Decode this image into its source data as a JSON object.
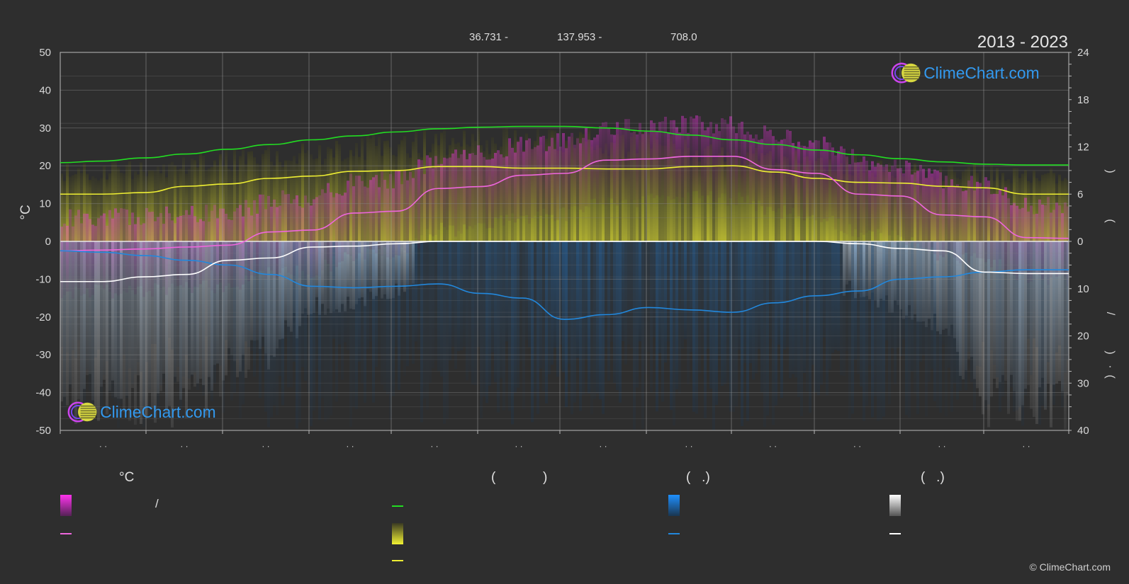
{
  "header": {
    "period": "2013 - 2023",
    "coord_lat": "36.731 -",
    "coord_lon": "137.953 -",
    "elevation": "708.0"
  },
  "brand": {
    "name": "ClimeChart.com",
    "copyright": "© ClimeChart.com"
  },
  "chart_data": {
    "type": "line",
    "left_axis": {
      "label": "°C",
      "min": -50,
      "max": 50,
      "ticks": [
        "50",
        "40",
        "30",
        "20",
        "10",
        "0",
        "-10",
        "-20",
        "-30",
        "-40",
        "-50"
      ]
    },
    "right_axis_top": {
      "min": 0,
      "max": 24,
      "ticks": [
        "24",
        "18",
        "12",
        "6",
        "0"
      ]
    },
    "right_axis_bottom": {
      "min": 0,
      "max": 40,
      "ticks": [
        "10",
        "20",
        "30",
        "40"
      ]
    },
    "right_axis_label_glyphs": [
      ")",
      "(",
      "/",
      ")",
      "·",
      "("
    ],
    "month_labels": [
      "· ·",
      "· ·",
      "· ·",
      "· ·",
      "· ·",
      "· ·",
      "· ·",
      "· ·",
      "· ·",
      "· ·",
      "· ·",
      "· ·"
    ],
    "x": [
      0,
      0.5,
      1,
      1.5,
      2,
      2.5,
      3,
      3.5,
      4,
      4.5,
      5,
      5.5,
      6,
      6.5,
      7,
      7.5,
      8,
      8.5,
      9,
      9.5,
      10,
      10.5,
      11,
      11.5,
      12
    ],
    "series": [
      {
        "key": "daylight",
        "color": "#22dd22",
        "values": [
          10.0,
          10.2,
          10.6,
          11.1,
          11.7,
          12.3,
          12.9,
          13.4,
          13.9,
          14.3,
          14.5,
          14.6,
          14.6,
          14.4,
          14.0,
          13.5,
          12.9,
          12.3,
          11.6,
          11.0,
          10.5,
          10.1,
          9.8,
          9.7,
          9.7
        ]
      },
      {
        "key": "sunshine",
        "color": "#eeee33",
        "values": [
          6.0,
          6.0,
          6.2,
          7.0,
          7.3,
          8.0,
          8.3,
          8.9,
          9.0,
          9.5,
          9.5,
          9.3,
          9.3,
          9.2,
          9.2,
          9.5,
          9.6,
          8.8,
          8.0,
          7.5,
          7.4,
          7.0,
          6.8,
          6.0,
          6.0
        ]
      },
      {
        "key": "temp_mean",
        "color": "#ee66dd",
        "values": [
          -2.5,
          -2.3,
          -2.0,
          -1.5,
          -1.0,
          2.5,
          3.0,
          7.5,
          8.0,
          14.0,
          14.5,
          17.5,
          18.0,
          21.5,
          21.8,
          22.5,
          22.5,
          19.0,
          18.0,
          12.5,
          12.0,
          7.0,
          6.5,
          1.0,
          0.8
        ]
      },
      {
        "key": "rain_mean",
        "color": "#2288dd",
        "values": [
          2.0,
          2.3,
          3.0,
          4.0,
          5.0,
          7.0,
          9.5,
          9.8,
          9.5,
          9.0,
          11.0,
          12.0,
          16.5,
          15.5,
          14.0,
          14.5,
          15.0,
          13.0,
          11.5,
          10.5,
          8.0,
          7.5,
          6.5,
          6.0,
          6.0
        ]
      },
      {
        "key": "snow_mean",
        "color": "#ffffff",
        "values": [
          8.5,
          8.5,
          7.5,
          7.0,
          4.0,
          3.5,
          1.2,
          1.0,
          0.5,
          0.0,
          0.0,
          0.0,
          0.0,
          0.0,
          0.0,
          0.0,
          0.0,
          0.0,
          0.0,
          0.5,
          1.5,
          2.0,
          6.5,
          6.8,
          6.8
        ]
      }
    ]
  },
  "legend": {
    "col1": {
      "header": "°C",
      "sep": "/"
    },
    "col2": {
      "header_open": "(",
      "header_close": ")"
    },
    "col3": {
      "header": "(   .)"
    },
    "col4": {
      "header": "(   .)"
    }
  },
  "colors": {
    "background": "#2e2e2e",
    "temp_band": "#dd33cc",
    "sunshine_band": "#b5b52e",
    "rain_band": "#1e5580",
    "snow_band": "#8a8a8a",
    "grid": "#5a5a5a"
  }
}
